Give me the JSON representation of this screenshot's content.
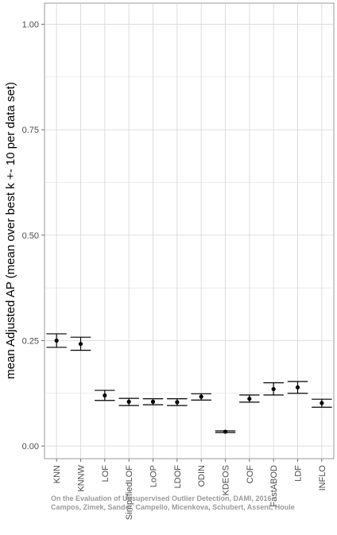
{
  "chart_data": {
    "type": "scatter",
    "subtype": "point-with-error-bars",
    "title": "",
    "xlabel": "",
    "ylabel": "mean Adjusted AP (mean over best k +- 10 per data set)",
    "ylim": [
      -0.03,
      1.05
    ],
    "yticks": [
      0.0,
      0.25,
      0.5,
      0.75,
      1.0
    ],
    "ytick_labels": [
      "0.00",
      "0.25",
      "0.50",
      "0.75",
      "1.00"
    ],
    "grid": true,
    "legend": "none",
    "categories": [
      "KNN",
      "KNNW",
      "LOF",
      "SimplifiedLOF",
      "LoOP",
      "LDOF",
      "ODIN",
      "KDEOS",
      "COF",
      "FastABOD",
      "LDF",
      "INFLO"
    ],
    "values": [
      0.25,
      0.242,
      0.12,
      0.105,
      0.105,
      0.104,
      0.117,
      0.034,
      0.112,
      0.135,
      0.139,
      0.102
    ],
    "error_low": [
      0.234,
      0.227,
      0.108,
      0.096,
      0.098,
      0.096,
      0.109,
      0.032,
      0.104,
      0.121,
      0.125,
      0.092
    ],
    "error_high": [
      0.266,
      0.258,
      0.132,
      0.113,
      0.112,
      0.112,
      0.124,
      0.036,
      0.121,
      0.15,
      0.153,
      0.111
    ],
    "colors": {
      "points": "#000000",
      "grid": "#d9d9d9",
      "axis": "#000000"
    }
  },
  "watermark": {
    "line1": "On the Evaluation of Unsupervised Outlier Detection, DAMI, 2016",
    "line2": "Campos, Zimek, Sander, Campello, Micenkova, Schubert, Assent, Houle"
  }
}
